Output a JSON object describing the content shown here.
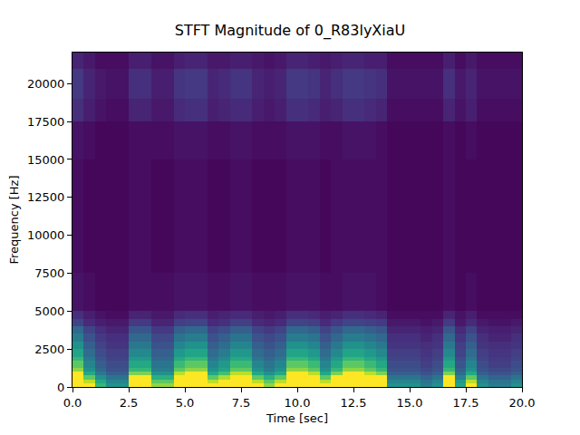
{
  "chart_data": {
    "type": "heatmap",
    "title": "STFT Magnitude of 0_R83lyXiaU",
    "x_label": "Time [sec]",
    "y_label": "Frequency [Hz]",
    "xlim": [
      0,
      20
    ],
    "ylim": [
      0,
      22050
    ],
    "xticks": [
      {
        "value": 0,
        "label": "0.0"
      },
      {
        "value": 2.5,
        "label": "2.5"
      },
      {
        "value": 5,
        "label": "5.0"
      },
      {
        "value": 7.5,
        "label": "7.5"
      },
      {
        "value": 10,
        "label": "10.0"
      },
      {
        "value": 12.5,
        "label": "12.5"
      },
      {
        "value": 15,
        "label": "15.0"
      },
      {
        "value": 17.5,
        "label": "17.5"
      },
      {
        "value": 20,
        "label": "20.0"
      }
    ],
    "yticks": [
      0,
      2500,
      5000,
      7500,
      10000,
      12500,
      15000,
      17500,
      20000
    ],
    "color": "viridis",
    "color_range": [
      0,
      0.6
    ],
    "time_edges": [
      0,
      0.5,
      1,
      1.5,
      2,
      2.5,
      3,
      3.5,
      4,
      4.5,
      5,
      5.5,
      6,
      6.5,
      7,
      7.5,
      8,
      8.5,
      9,
      9.5,
      10,
      10.5,
      11,
      11.5,
      12,
      12.5,
      13,
      13.5,
      14,
      14.5,
      15,
      15.5,
      16,
      16.5,
      17,
      17.5,
      18,
      18.5,
      19,
      19.5,
      20
    ],
    "frequency_edges": [
      0,
      250,
      500,
      750,
      1000,
      1250,
      1500,
      1750,
      2000,
      2500,
      3000,
      3500,
      4000,
      4500,
      5000,
      7500,
      10000,
      12500,
      15000,
      17500,
      19000,
      20000,
      21000,
      22050
    ],
    "cells": [
      [
        1,
        0.6,
        0.4,
        0.3,
        0.3,
        0.8,
        0.8,
        0.5,
        0.5,
        0.9,
        1,
        1,
        0.6,
        0.7,
        0.9,
        0.9,
        0.6,
        0.5,
        0.6,
        1,
        1,
        0.9,
        0.6,
        0.8,
        1,
        1,
        0.9,
        0.8,
        0.3,
        0.3,
        0.3,
        0.25,
        0.3,
        0.8,
        0.35,
        0.6,
        0.3,
        0.25,
        0.25,
        0.3
      ],
      [
        0.9,
        0.54,
        0.36,
        0.27,
        0.27,
        0.72,
        0.72,
        0.45,
        0.45,
        0.81,
        0.9,
        0.9,
        0.54,
        0.63,
        0.81,
        0.81,
        0.54,
        0.45,
        0.54,
        0.9,
        0.9,
        0.81,
        0.54,
        0.72,
        0.9,
        0.9,
        0.81,
        0.72,
        0.27,
        0.27,
        0.27,
        0.23,
        0.27,
        0.72,
        0.32,
        0.54,
        0.27,
        0.23,
        0.23,
        0.27
      ],
      [
        0.75,
        0.45,
        0.3,
        0.23,
        0.23,
        0.6,
        0.6,
        0.38,
        0.38,
        0.68,
        0.75,
        0.75,
        0.45,
        0.53,
        0.68,
        0.68,
        0.45,
        0.38,
        0.45,
        0.75,
        0.75,
        0.68,
        0.45,
        0.6,
        0.75,
        0.75,
        0.68,
        0.6,
        0.23,
        0.23,
        0.23,
        0.19,
        0.23,
        0.6,
        0.26,
        0.45,
        0.23,
        0.19,
        0.19,
        0.23
      ],
      [
        0.6,
        0.36,
        0.24,
        0.18,
        0.18,
        0.48,
        0.48,
        0.3,
        0.3,
        0.54,
        0.6,
        0.6,
        0.36,
        0.42,
        0.54,
        0.54,
        0.36,
        0.3,
        0.36,
        0.6,
        0.6,
        0.54,
        0.36,
        0.48,
        0.6,
        0.6,
        0.54,
        0.48,
        0.18,
        0.18,
        0.18,
        0.15,
        0.18,
        0.48,
        0.21,
        0.36,
        0.18,
        0.15,
        0.15,
        0.18
      ],
      [
        0.5,
        0.3,
        0.2,
        0.15,
        0.15,
        0.4,
        0.4,
        0.25,
        0.25,
        0.45,
        0.5,
        0.5,
        0.3,
        0.35,
        0.45,
        0.45,
        0.3,
        0.25,
        0.3,
        0.5,
        0.5,
        0.45,
        0.3,
        0.4,
        0.5,
        0.5,
        0.45,
        0.4,
        0.15,
        0.15,
        0.15,
        0.13,
        0.15,
        0.4,
        0.18,
        0.3,
        0.15,
        0.13,
        0.13,
        0.15
      ],
      [
        0.45,
        0.27,
        0.18,
        0.14,
        0.14,
        0.36,
        0.36,
        0.23,
        0.23,
        0.41,
        0.45,
        0.45,
        0.27,
        0.32,
        0.41,
        0.41,
        0.27,
        0.23,
        0.27,
        0.45,
        0.45,
        0.41,
        0.27,
        0.36,
        0.45,
        0.45,
        0.41,
        0.36,
        0.14,
        0.14,
        0.14,
        0.11,
        0.14,
        0.36,
        0.16,
        0.27,
        0.14,
        0.11,
        0.11,
        0.14
      ],
      [
        0.45,
        0.27,
        0.18,
        0.14,
        0.14,
        0.36,
        0.36,
        0.23,
        0.23,
        0.41,
        0.45,
        0.45,
        0.27,
        0.32,
        0.41,
        0.41,
        0.27,
        0.23,
        0.27,
        0.45,
        0.45,
        0.41,
        0.27,
        0.36,
        0.45,
        0.45,
        0.41,
        0.36,
        0.14,
        0.14,
        0.14,
        0.11,
        0.14,
        0.36,
        0.16,
        0.27,
        0.14,
        0.11,
        0.11,
        0.14
      ],
      [
        0.4,
        0.24,
        0.16,
        0.12,
        0.12,
        0.32,
        0.32,
        0.2,
        0.2,
        0.36,
        0.4,
        0.4,
        0.24,
        0.28,
        0.36,
        0.36,
        0.24,
        0.2,
        0.24,
        0.4,
        0.4,
        0.36,
        0.24,
        0.32,
        0.4,
        0.4,
        0.36,
        0.32,
        0.12,
        0.12,
        0.12,
        0.1,
        0.12,
        0.32,
        0.14,
        0.24,
        0.12,
        0.1,
        0.1,
        0.12
      ],
      [
        0.35,
        0.21,
        0.14,
        0.11,
        0.11,
        0.28,
        0.28,
        0.18,
        0.18,
        0.32,
        0.35,
        0.35,
        0.21,
        0.25,
        0.32,
        0.32,
        0.21,
        0.18,
        0.21,
        0.35,
        0.35,
        0.32,
        0.21,
        0.28,
        0.35,
        0.35,
        0.32,
        0.28,
        0.11,
        0.11,
        0.11,
        0.09,
        0.11,
        0.28,
        0.12,
        0.21,
        0.11,
        0.09,
        0.09,
        0.11
      ],
      [
        0.3,
        0.18,
        0.12,
        0.09,
        0.09,
        0.24,
        0.24,
        0.15,
        0.15,
        0.27,
        0.3,
        0.3,
        0.18,
        0.21,
        0.27,
        0.27,
        0.18,
        0.15,
        0.18,
        0.3,
        0.3,
        0.27,
        0.18,
        0.24,
        0.3,
        0.3,
        0.27,
        0.24,
        0.09,
        0.09,
        0.09,
        0.08,
        0.09,
        0.24,
        0.11,
        0.18,
        0.09,
        0.08,
        0.08,
        0.09
      ],
      [
        0.25,
        0.15,
        0.1,
        0.08,
        0.08,
        0.2,
        0.2,
        0.13,
        0.13,
        0.23,
        0.25,
        0.25,
        0.15,
        0.18,
        0.23,
        0.23,
        0.15,
        0.13,
        0.15,
        0.25,
        0.25,
        0.23,
        0.15,
        0.2,
        0.25,
        0.25,
        0.23,
        0.2,
        0.08,
        0.08,
        0.08,
        0.06,
        0.08,
        0.2,
        0.09,
        0.15,
        0.08,
        0.06,
        0.06,
        0.08
      ],
      [
        0.2,
        0.12,
        0.08,
        0.06,
        0.06,
        0.16,
        0.16,
        0.1,
        0.1,
        0.18,
        0.2,
        0.2,
        0.12,
        0.14,
        0.18,
        0.18,
        0.12,
        0.1,
        0.12,
        0.2,
        0.2,
        0.18,
        0.12,
        0.16,
        0.2,
        0.2,
        0.18,
        0.16,
        0.06,
        0.06,
        0.06,
        0.05,
        0.06,
        0.16,
        0.07,
        0.12,
        0.06,
        0.05,
        0.05,
        0.06
      ],
      [
        0.12,
        0.07,
        0.05,
        0.04,
        0.04,
        0.1,
        0.1,
        0.06,
        0.06,
        0.11,
        0.12,
        0.12,
        0.07,
        0.08,
        0.11,
        0.11,
        0.07,
        0.06,
        0.07,
        0.12,
        0.12,
        0.11,
        0.07,
        0.1,
        0.12,
        0.12,
        0.11,
        0.1,
        0.04,
        0.04,
        0.04,
        0.03,
        0.04,
        0.1,
        0.04,
        0.07,
        0.04,
        0.03,
        0.03,
        0.04
      ],
      [
        0.08,
        0.05,
        0.03,
        0.02,
        0.02,
        0.06,
        0.06,
        0.04,
        0.04,
        0.07,
        0.08,
        0.08,
        0.05,
        0.06,
        0.07,
        0.07,
        0.05,
        0.04,
        0.05,
        0.08,
        0.08,
        0.07,
        0.05,
        0.06,
        0.08,
        0.08,
        0.07,
        0.06,
        0.02,
        0.02,
        0.02,
        0.02,
        0.02,
        0.06,
        0.03,
        0.05,
        0.02,
        0.02,
        0.02,
        0.02
      ],
      [
        0.03,
        0.02,
        0.01,
        0.01,
        0.01,
        0.02,
        0.02,
        0.02,
        0.02,
        0.03,
        0.03,
        0.03,
        0.02,
        0.02,
        0.03,
        0.03,
        0.02,
        0.02,
        0.02,
        0.03,
        0.03,
        0.03,
        0.02,
        0.02,
        0.03,
        0.03,
        0.03,
        0.02,
        0.01,
        0.01,
        0.01,
        0.01,
        0.01,
        0.02,
        0.01,
        0.02,
        0.01,
        0.01,
        0.01,
        0.01
      ],
      [
        0.02,
        0.01,
        0.01,
        0.01,
        0.01,
        0.02,
        0.02,
        0.01,
        0.01,
        0.02,
        0.02,
        0.02,
        0.01,
        0.01,
        0.02,
        0.02,
        0.01,
        0.01,
        0.01,
        0.02,
        0.02,
        0.02,
        0.01,
        0.02,
        0.02,
        0.02,
        0.02,
        0.02,
        0.01,
        0.01,
        0.01,
        0.01,
        0.01,
        0.02,
        0.01,
        0.01,
        0.01,
        0.01,
        0.01,
        0.01
      ],
      [
        0.02,
        0.01,
        0.01,
        0.01,
        0.01,
        0.02,
        0.02,
        0.01,
        0.01,
        0.02,
        0.02,
        0.02,
        0.01,
        0.01,
        0.02,
        0.02,
        0.01,
        0.01,
        0.01,
        0.02,
        0.02,
        0.02,
        0.01,
        0.02,
        0.02,
        0.02,
        0.02,
        0.02,
        0.01,
        0.01,
        0.01,
        0.01,
        0.01,
        0.02,
        0.01,
        0.01,
        0.01,
        0.01,
        0.01,
        0.01
      ],
      [
        0.02,
        0.01,
        0.01,
        0.01,
        0.01,
        0.02,
        0.02,
        0.01,
        0.01,
        0.02,
        0.02,
        0.02,
        0.01,
        0.01,
        0.02,
        0.02,
        0.01,
        0.01,
        0.01,
        0.02,
        0.02,
        0.02,
        0.01,
        0.02,
        0.02,
        0.02,
        0.02,
        0.02,
        0.01,
        0.01,
        0.01,
        0.01,
        0.01,
        0.02,
        0.01,
        0.01,
        0.01,
        0.01,
        0.01,
        0.01
      ],
      [
        0.03,
        0.02,
        0.01,
        0.01,
        0.01,
        0.02,
        0.02,
        0.02,
        0.02,
        0.03,
        0.03,
        0.03,
        0.02,
        0.02,
        0.03,
        0.03,
        0.02,
        0.02,
        0.02,
        0.03,
        0.03,
        0.03,
        0.02,
        0.02,
        0.03,
        0.03,
        0.03,
        0.02,
        0.01,
        0.01,
        0.01,
        0.01,
        0.01,
        0.02,
        0.01,
        0.02,
        0.01,
        0.01,
        0.01,
        0.01
      ],
      [
        0.08,
        0.05,
        0.03,
        0.02,
        0.02,
        0.06,
        0.06,
        0.04,
        0.04,
        0.07,
        0.08,
        0.08,
        0.05,
        0.06,
        0.07,
        0.07,
        0.05,
        0.04,
        0.05,
        0.08,
        0.08,
        0.07,
        0.05,
        0.06,
        0.08,
        0.08,
        0.07,
        0.06,
        0.02,
        0.02,
        0.02,
        0.02,
        0.02,
        0.06,
        0.03,
        0.05,
        0.02,
        0.02,
        0.02,
        0.02
      ],
      [
        0.1,
        0.06,
        0.04,
        0.03,
        0.03,
        0.08,
        0.08,
        0.05,
        0.05,
        0.09,
        0.1,
        0.1,
        0.06,
        0.07,
        0.09,
        0.09,
        0.06,
        0.05,
        0.06,
        0.1,
        0.1,
        0.09,
        0.06,
        0.08,
        0.1,
        0.1,
        0.09,
        0.08,
        0.03,
        0.03,
        0.03,
        0.03,
        0.03,
        0.08,
        0.04,
        0.06,
        0.03,
        0.03,
        0.03,
        0.03
      ],
      [
        0.1,
        0.06,
        0.04,
        0.03,
        0.03,
        0.08,
        0.08,
        0.05,
        0.05,
        0.09,
        0.1,
        0.1,
        0.06,
        0.07,
        0.09,
        0.09,
        0.06,
        0.05,
        0.06,
        0.1,
        0.1,
        0.09,
        0.06,
        0.08,
        0.1,
        0.1,
        0.09,
        0.08,
        0.03,
        0.03,
        0.03,
        0.03,
        0.03,
        0.08,
        0.04,
        0.06,
        0.03,
        0.03,
        0.03,
        0.03
      ],
      [
        0.06,
        0.04,
        0.02,
        0.02,
        0.02,
        0.05,
        0.05,
        0.03,
        0.03,
        0.05,
        0.06,
        0.06,
        0.04,
        0.04,
        0.05,
        0.05,
        0.04,
        0.03,
        0.04,
        0.06,
        0.06,
        0.05,
        0.04,
        0.05,
        0.06,
        0.06,
        0.05,
        0.05,
        0.02,
        0.02,
        0.02,
        0.02,
        0.02,
        0.05,
        0.02,
        0.04,
        0.02,
        0.02,
        0.02,
        0.02
      ]
    ]
  }
}
